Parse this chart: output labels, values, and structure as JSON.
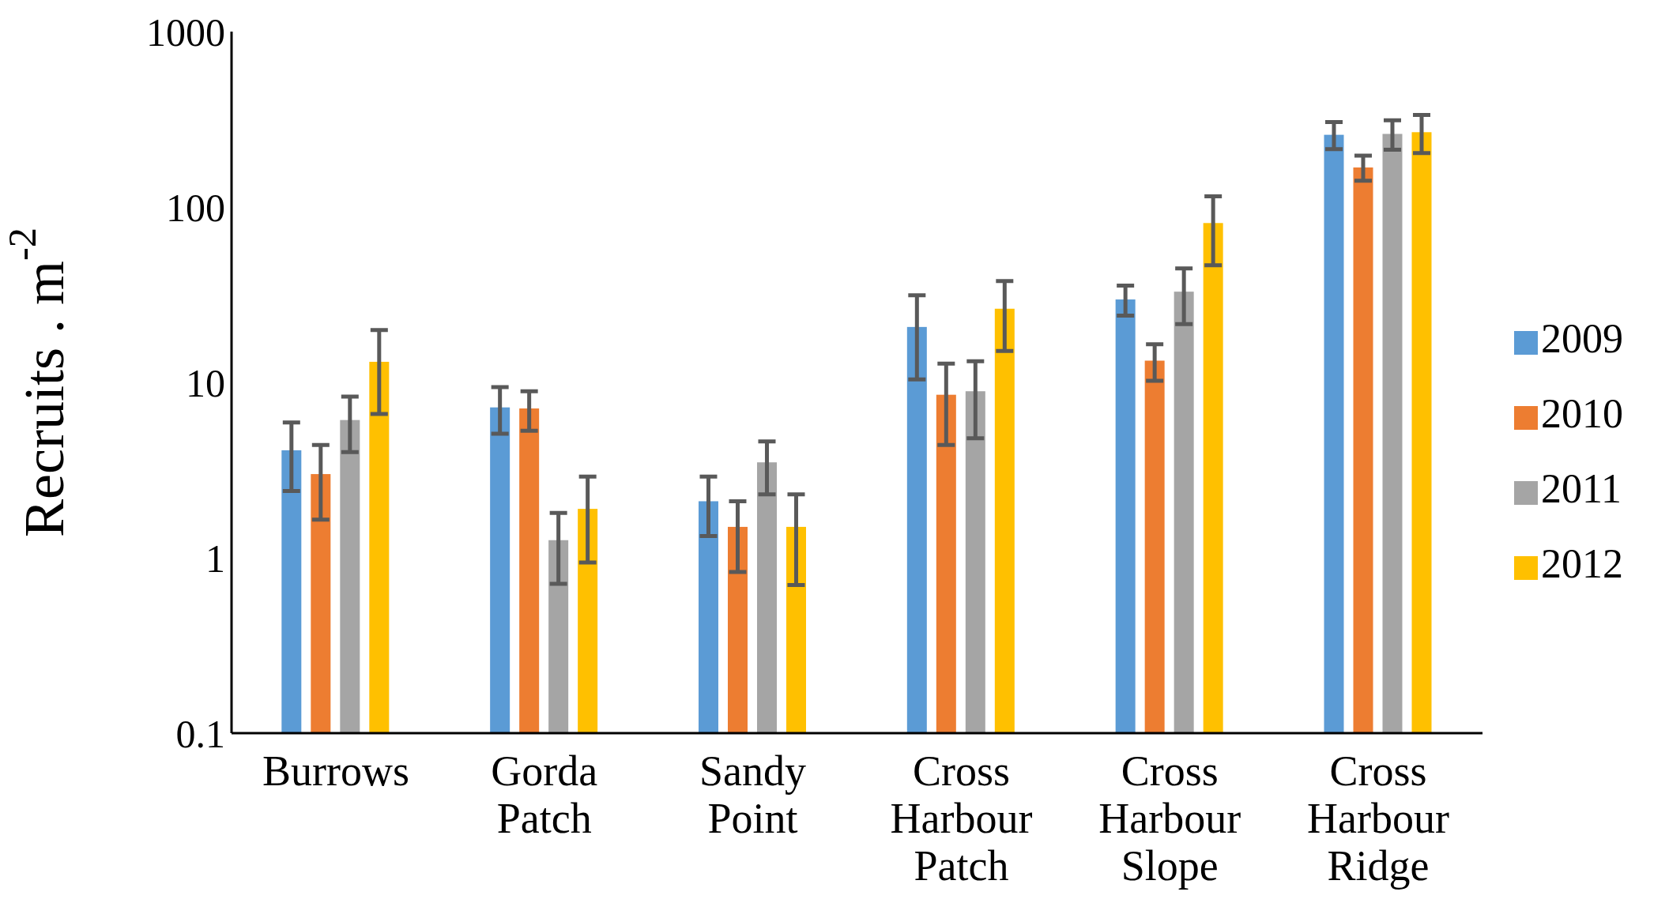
{
  "chart_data": {
    "type": "bar",
    "ylabel": "Recruits . m$^{-2}$",
    "categories": [
      "Burrows",
      "Gorda Patch",
      "Sandy Point",
      "Cross Harbour Patch",
      "Cross Harbour Slope",
      "Cross Harbour Ridge"
    ],
    "series": [
      {
        "name": "2009",
        "color": "#5b9bd5",
        "values": [
          4.1,
          7.2,
          2.1,
          20.7,
          29.7,
          258
        ],
        "errors": [
          [
            2.4,
            5.9
          ],
          [
            5.1,
            9.4
          ],
          [
            1.33,
            2.9
          ],
          [
            10.4,
            31.4
          ],
          [
            24,
            35.6
          ],
          [
            214,
            305
          ]
        ]
      },
      {
        "name": "2010",
        "color": "#ed7d31",
        "values": [
          3.0,
          7.1,
          1.5,
          8.5,
          13.3,
          168
        ],
        "errors": [
          [
            1.65,
            4.4
          ],
          [
            5.3,
            8.9
          ],
          [
            0.83,
            2.1
          ],
          [
            4.4,
            12.8
          ],
          [
            10.2,
            16.5
          ],
          [
            141,
            196
          ]
        ]
      },
      {
        "name": "2011",
        "color": "#a5a5a5",
        "values": [
          6.1,
          1.26,
          3.5,
          8.9,
          32.9,
          261
        ],
        "errors": [
          [
            4.0,
            8.3
          ],
          [
            0.71,
            1.8
          ],
          [
            2.3,
            4.6
          ],
          [
            4.8,
            13.2
          ],
          [
            21.5,
            44.7
          ],
          [
            212,
            312
          ]
        ]
      },
      {
        "name": "2012",
        "color": "#ffc000",
        "values": [
          13.1,
          1.9,
          1.5,
          26.3,
          81,
          267
        ],
        "errors": [
          [
            6.6,
            19.9
          ],
          [
            0.94,
            2.9
          ],
          [
            0.7,
            2.3
          ],
          [
            15.1,
            37.8
          ],
          [
            46.5,
            115
          ],
          [
            203,
            335
          ]
        ]
      }
    ],
    "log": "y",
    "ylim": [
      0.1,
      1000
    ],
    "yticks": [
      0.1,
      1,
      10,
      100,
      1000
    ],
    "legend": "right"
  }
}
